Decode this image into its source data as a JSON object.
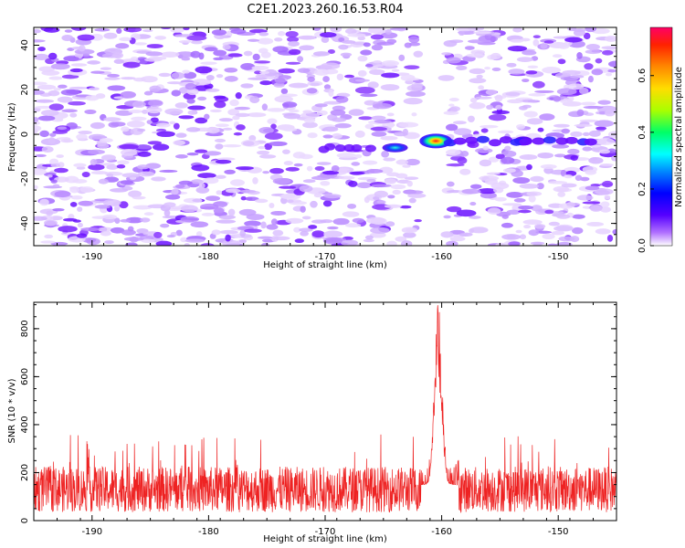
{
  "title": "C2E1.2023.260.16.53.R04",
  "chart_data": [
    {
      "type": "heatmap",
      "xlabel": "Height of straight line (km)",
      "ylabel": "Frequency (Hz)",
      "xlim": [
        -195,
        -145
      ],
      "ylim": [
        -50,
        48
      ],
      "x_ticks": [
        -190,
        -180,
        -170,
        -160,
        -150
      ],
      "y_ticks": [
        -40,
        -20,
        0,
        20,
        40
      ],
      "colorbar": {
        "label": "Normalized spectral amplitude",
        "ticks": [
          0.0,
          0.2,
          0.4,
          0.6
        ],
        "range": [
          0.0,
          0.77
        ]
      },
      "features": [
        {
          "x": -160.5,
          "y": -3,
          "amplitude": 0.75
        },
        {
          "x": -164,
          "y": -6,
          "amplitude": 0.3
        },
        {
          "x": -153,
          "y": -3,
          "amplitude": 0.12
        }
      ]
    },
    {
      "type": "line",
      "xlabel": "Height of straight line (km)",
      "ylabel": "SNR (10 * v/v)",
      "xlim": [
        -195,
        -145
      ],
      "ylim": [
        0,
        910
      ],
      "x_ticks": [
        -190,
        -180,
        -170,
        -160,
        -150
      ],
      "y_ticks": [
        0,
        200,
        400,
        600,
        800
      ],
      "line_color": "#ee2222",
      "baseline_mean": 130,
      "noise_range": [
        30,
        300
      ],
      "peak": {
        "x": -160.3,
        "y": 910
      }
    }
  ]
}
